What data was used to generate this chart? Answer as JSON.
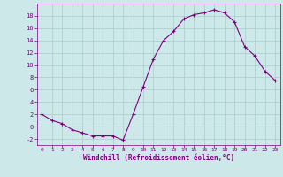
{
  "x": [
    0,
    1,
    2,
    3,
    4,
    5,
    6,
    7,
    8,
    9,
    10,
    11,
    12,
    13,
    14,
    15,
    16,
    17,
    18,
    19,
    20,
    21,
    22,
    23
  ],
  "y": [
    2,
    1,
    0.5,
    -0.5,
    -1,
    -1.5,
    -1.5,
    -1.5,
    -2.2,
    2,
    6.5,
    11,
    14,
    15.5,
    17.5,
    18.2,
    18.5,
    19,
    18.5,
    17,
    13,
    11.5,
    9,
    7.5
  ],
  "line_color": "#800080",
  "marker": "+",
  "marker_size": 3,
  "bg_color": "#cce8e8",
  "grid_color": "#aacccc",
  "xlabel": "Windchill (Refroidissement éolien,°C)",
  "xlabel_color": "#800080",
  "tick_color": "#800080",
  "ylim": [
    -3,
    20
  ],
  "yticks": [
    -2,
    0,
    2,
    4,
    6,
    8,
    10,
    12,
    14,
    16,
    18
  ],
  "xticks": [
    0,
    1,
    2,
    3,
    4,
    5,
    6,
    7,
    8,
    9,
    10,
    11,
    12,
    13,
    14,
    15,
    16,
    17,
    18,
    19,
    20,
    21,
    22,
    23
  ]
}
